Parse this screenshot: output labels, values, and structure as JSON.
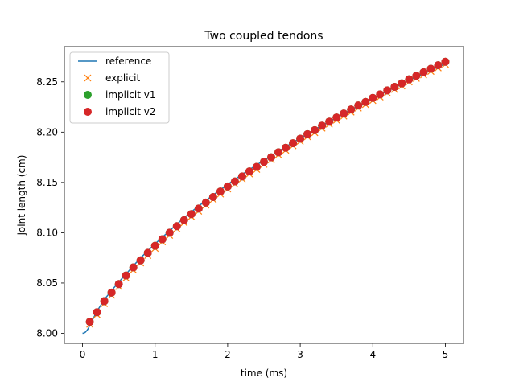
{
  "chart_data": {
    "type": "line",
    "title": "Two coupled tendons",
    "xlabel": "time (ms)",
    "ylabel": "joint length (cm)",
    "xlim": [
      -0.25,
      5.25
    ],
    "ylim": [
      7.99,
      8.285
    ],
    "xticks": [
      0,
      1,
      2,
      3,
      4,
      5
    ],
    "xtick_labels": [
      "0",
      "1",
      "2",
      "3",
      "4",
      "5"
    ],
    "yticks": [
      8.0,
      8.05,
      8.1,
      8.15,
      8.2,
      8.25
    ],
    "ytick_labels": [
      "8.00",
      "8.05",
      "8.10",
      "8.15",
      "8.20",
      "8.25"
    ],
    "grid": false,
    "legend_position": "top-left",
    "series": [
      {
        "name": "reference",
        "style": "line",
        "color": "#1f77b4"
      },
      {
        "name": "explicit",
        "style": "x-marker",
        "color": "#ff7f0e"
      },
      {
        "name": "implicit v1",
        "style": "circle-marker",
        "color": "#2ca02c"
      },
      {
        "name": "implicit v2",
        "style": "circle-marker",
        "color": "#d62728"
      }
    ],
    "reference_curve": {
      "x": [
        0,
        0.02,
        0.04,
        0.06,
        0.08,
        0.1,
        0.15,
        0.2,
        0.3,
        0.4,
        0.5,
        0.6,
        0.7,
        0.8,
        0.9,
        1.0,
        1.2,
        1.4,
        1.6,
        1.8,
        2.0,
        2.2,
        2.4,
        2.6,
        2.8,
        3.0,
        3.2,
        3.4,
        3.6,
        3.8,
        4.0,
        4.2,
        4.4,
        4.6,
        4.8,
        5.0
      ],
      "y": [
        8.0,
        8.0003,
        8.0012,
        8.0028,
        8.0048,
        8.008,
        8.015,
        8.022,
        8.0335,
        8.0425,
        8.051,
        8.059,
        8.067,
        8.075,
        8.082,
        8.089,
        8.102,
        8.115,
        8.1265,
        8.1375,
        8.148,
        8.158,
        8.1675,
        8.1765,
        8.1855,
        8.194,
        8.2025,
        8.2105,
        8.2185,
        8.226,
        8.2335,
        8.241,
        8.248,
        8.255,
        8.2615,
        8.268
      ]
    },
    "sample_x": [
      0.1,
      0.2,
      0.3,
      0.4,
      0.5,
      0.6,
      0.7,
      0.8,
      0.9,
      1.0,
      1.1,
      1.2,
      1.3,
      1.4,
      1.5,
      1.6,
      1.7,
      1.8,
      1.9,
      2.0,
      2.1,
      2.2,
      2.3,
      2.4,
      2.5,
      2.6,
      2.7,
      2.8,
      2.9,
      3.0,
      3.1,
      3.2,
      3.3,
      3.4,
      3.5,
      3.6,
      3.7,
      3.8,
      3.9,
      4.0,
      4.1,
      4.2,
      4.3,
      4.4,
      4.5,
      4.6,
      4.7,
      4.8,
      4.9,
      5.0
    ],
    "sample_y": [
      8.0115,
      8.021,
      8.032,
      8.0405,
      8.049,
      8.0575,
      8.0655,
      8.0725,
      8.08,
      8.087,
      8.0935,
      8.1,
      8.1065,
      8.1125,
      8.1185,
      8.124,
      8.13,
      8.1355,
      8.141,
      8.146,
      8.151,
      8.156,
      8.161,
      8.1655,
      8.1705,
      8.175,
      8.18,
      8.1845,
      8.189,
      8.1935,
      8.198,
      8.202,
      8.2065,
      8.2105,
      8.2145,
      8.2185,
      8.2225,
      8.2265,
      8.23,
      8.234,
      8.2375,
      8.2415,
      8.245,
      8.2485,
      8.2525,
      8.256,
      8.2595,
      8.263,
      8.2665,
      8.27
    ],
    "explicit_y_offset": -0.0025
  }
}
